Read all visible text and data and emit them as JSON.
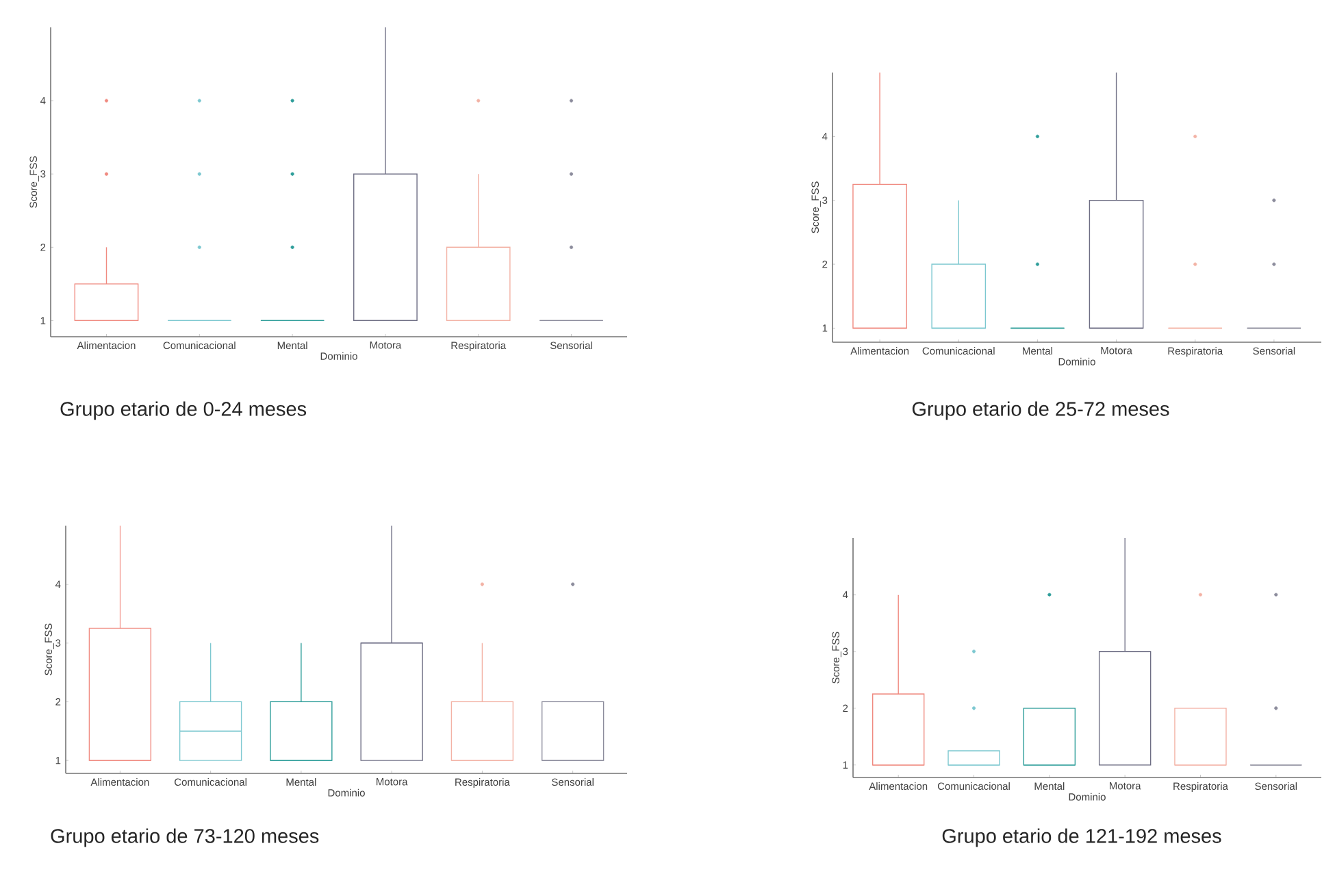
{
  "chart_data": [
    {
      "type": "box",
      "title": "Grupo etario de 0-24 meses",
      "xlabel": "Dominio",
      "ylabel": "Score_FSS",
      "categories": [
        "Alimentacion",
        "Comunicacional",
        "Mental",
        "Motora",
        "Respiratoria",
        "Sensorial"
      ],
      "colors": [
        "#f08a80",
        "#7cc8d0",
        "#2f9e9a",
        "#6e6e84",
        "#f3b2a5",
        "#8c8c9c"
      ],
      "boxes": [
        {
          "low": 1,
          "q1": 1,
          "median": 1,
          "q3": 1.5,
          "high": 2,
          "outliers": [
            3,
            4
          ]
        },
        {
          "low": 1,
          "q1": 1,
          "median": 1,
          "q3": 1,
          "high": 1,
          "outliers": [
            2,
            3,
            4
          ]
        },
        {
          "low": 1,
          "q1": 1,
          "median": 1,
          "q3": 1,
          "high": 1,
          "outliers": [
            2,
            3,
            4
          ]
        },
        {
          "low": 1,
          "q1": 1,
          "median": 1,
          "q3": 3,
          "high": 5
        },
        {
          "low": 1,
          "q1": 1,
          "median": 1,
          "q3": 2,
          "high": 3,
          "outliers": [
            4
          ]
        },
        {
          "low": 1,
          "q1": 1,
          "median": 1,
          "q3": 1,
          "high": 1,
          "outliers": [
            2,
            3,
            4
          ]
        }
      ],
      "ylim": [
        0.78,
        5
      ],
      "yticks": [
        1,
        2,
        3,
        4
      ]
    },
    {
      "type": "box",
      "title": "Grupo etario de 25-72 meses",
      "xlabel": "Dominio",
      "ylabel": "Score_FSS",
      "categories": [
        "Alimentacion",
        "Comunicacional",
        "Mental",
        "Motora",
        "Respiratoria",
        "Sensorial"
      ],
      "colors": [
        "#f08a80",
        "#7cc8d0",
        "#2f9e9a",
        "#6e6e84",
        "#f3b2a5",
        "#8c8c9c"
      ],
      "boxes": [
        {
          "low": 1,
          "q1": 1,
          "median": 1,
          "q3": 3.25,
          "high": 5
        },
        {
          "low": 1,
          "q1": 1,
          "median": 1,
          "q3": 2,
          "high": 3
        },
        {
          "low": 1,
          "q1": 1,
          "median": 1,
          "q3": 1,
          "high": 1,
          "outliers": [
            2,
            4
          ]
        },
        {
          "low": 1,
          "q1": 1,
          "median": 1,
          "q3": 3,
          "high": 5
        },
        {
          "low": 1,
          "q1": 1,
          "median": 1,
          "q3": 1,
          "high": 1,
          "outliers": [
            2,
            4
          ]
        },
        {
          "low": 1,
          "q1": 1,
          "median": 1,
          "q3": 1,
          "high": 1,
          "outliers": [
            2,
            3
          ]
        }
      ],
      "ylim": [
        0.78,
        5
      ],
      "yticks": [
        1,
        2,
        3,
        4
      ]
    },
    {
      "type": "box",
      "title": "Grupo etario de 73-120 meses",
      "xlabel": "Dominio",
      "ylabel": "Score_FSS",
      "categories": [
        "Alimentacion",
        "Comunicacional",
        "Mental",
        "Motora",
        "Respiratoria",
        "Sensorial"
      ],
      "colors": [
        "#f08a80",
        "#7cc8d0",
        "#2f9e9a",
        "#6e6e84",
        "#f3b2a5",
        "#8c8c9c"
      ],
      "boxes": [
        {
          "low": 1,
          "q1": 1,
          "median": 1,
          "q3": 3.25,
          "high": 5
        },
        {
          "low": 1,
          "q1": 1,
          "median": 1.5,
          "q3": 2,
          "high": 3
        },
        {
          "low": 1,
          "q1": 1,
          "median": 1,
          "q3": 2,
          "high": 3
        },
        {
          "low": 1,
          "q1": 1,
          "median": 3,
          "q3": 3,
          "high": 5
        },
        {
          "low": 1,
          "q1": 1,
          "median": 1,
          "q3": 2,
          "high": 3,
          "outliers": [
            4
          ]
        },
        {
          "low": 1,
          "q1": 1,
          "median": 1,
          "q3": 2,
          "high": 2,
          "outliers": [
            4
          ]
        }
      ],
      "ylim": [
        0.78,
        5
      ],
      "yticks": [
        1,
        2,
        3,
        4
      ]
    },
    {
      "type": "box",
      "title": "Grupo etario de 121-192 meses",
      "xlabel": "Dominio",
      "ylabel": "Score_FSS",
      "categories": [
        "Alimentacion",
        "Comunicacional",
        "Mental",
        "Motora",
        "Respiratoria",
        "Sensorial"
      ],
      "colors": [
        "#f08a80",
        "#7cc8d0",
        "#2f9e9a",
        "#6e6e84",
        "#f3b2a5",
        "#8c8c9c"
      ],
      "boxes": [
        {
          "low": 1,
          "q1": 1,
          "median": 1,
          "q3": 2.25,
          "high": 4
        },
        {
          "low": 1,
          "q1": 1,
          "median": 1,
          "q3": 1.25,
          "high": 1.25,
          "outliers": [
            2,
            3
          ]
        },
        {
          "low": 1,
          "q1": 1,
          "median": 1,
          "q3": 2,
          "high": 2,
          "outliers": [
            4
          ]
        },
        {
          "low": 1,
          "q1": 1,
          "median": 3,
          "q3": 3,
          "high": 5
        },
        {
          "low": 1,
          "q1": 1,
          "median": 1,
          "q3": 2,
          "high": 2,
          "outliers": [
            4
          ]
        },
        {
          "low": 1,
          "q1": 1,
          "median": 1,
          "q3": 1,
          "high": 1,
          "outliers": [
            2,
            4
          ]
        }
      ],
      "ylim": [
        0.78,
        5
      ],
      "yticks": [
        1,
        2,
        3,
        4
      ]
    }
  ]
}
